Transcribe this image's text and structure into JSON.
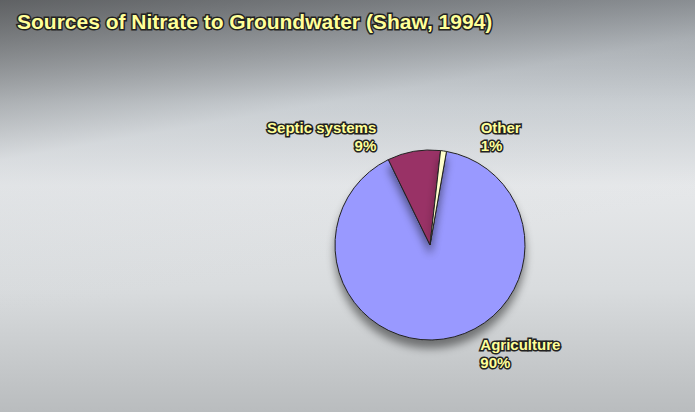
{
  "chart_data": {
    "type": "pie",
    "title": "Sources of Nitrate to Groundwater (Shaw, 1994)",
    "categories": [
      "Agriculture",
      "Septic systems",
      "Other"
    ],
    "values": [
      90,
      9,
      1
    ],
    "value_labels": [
      "90%",
      "9%",
      "1%"
    ],
    "colors": [
      "#9999ff",
      "#993366",
      "#ffffcc"
    ],
    "data_labels": true
  }
}
